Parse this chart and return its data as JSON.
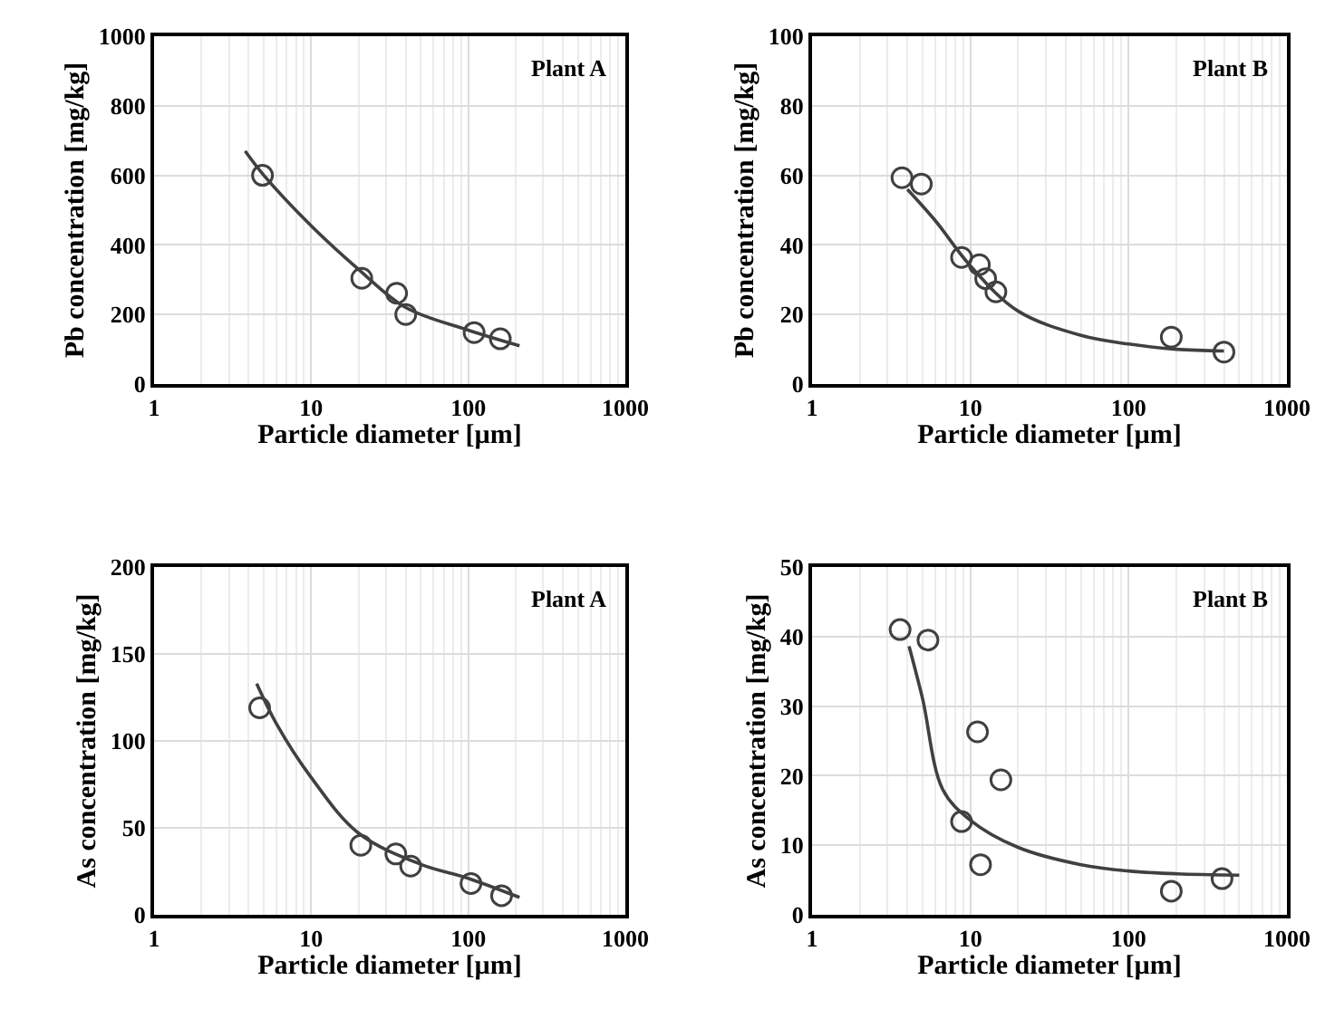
{
  "chart_data": [
    {
      "type": "scatter",
      "xlabel": "Particle diameter [µm]",
      "ylabel": "Pb concentration [mg/kg]",
      "annotations": [
        "Plant A"
      ],
      "log": "x",
      "grid": true,
      "xlim": [
        1,
        1000
      ],
      "xticks": [
        1,
        10,
        100,
        1000
      ],
      "ylim": [
        0,
        1000
      ],
      "yticks": [
        0,
        200,
        400,
        600,
        800,
        1000
      ],
      "series": [
        {
          "type": "scatter",
          "color": "#404040",
          "marker": "circle",
          "x": [
            4.9,
            21,
            35,
            40,
            109,
            160
          ],
          "values": [
            600,
            304,
            261,
            200,
            148,
            130
          ]
        },
        {
          "type": "line",
          "color": "#404040",
          "marker": "none",
          "x": [
            3.8,
            5,
            10,
            20,
            40,
            100,
            212
          ],
          "values": [
            670,
            600,
            455,
            330,
            220,
            155,
            110
          ]
        }
      ]
    },
    {
      "type": "scatter",
      "xlabel": "Particle diameter [µm]",
      "ylabel": "Pb concentration [mg/kg]",
      "annotations": [
        "Plant B"
      ],
      "log": "x",
      "grid": true,
      "xlim": [
        1,
        1000
      ],
      "xticks": [
        1,
        10,
        100,
        1000
      ],
      "ylim": [
        0,
        100
      ],
      "yticks": [
        0,
        20,
        40,
        60,
        80,
        100
      ],
      "series": [
        {
          "type": "scatter",
          "color": "#404040",
          "marker": "circle",
          "x": [
            3.7,
            4.9,
            8.8,
            11.4,
            12.5,
            14.5,
            186,
            400
          ],
          "values": [
            59.3,
            57.5,
            36.4,
            34.3,
            30.3,
            26.5,
            13.5,
            9.2
          ]
        },
        {
          "type": "line",
          "color": "#404040",
          "marker": "none",
          "x": [
            4,
            6,
            10,
            20,
            50,
            100,
            200,
            400
          ],
          "values": [
            56,
            47,
            34,
            21,
            14,
            11.5,
            10,
            9.5
          ]
        }
      ]
    },
    {
      "type": "scatter",
      "xlabel": "Particle diameter [µm]",
      "ylabel": "As concentration [mg/kg]",
      "annotations": [
        "Plant A"
      ],
      "log": "x",
      "grid": true,
      "xlim": [
        1,
        1000
      ],
      "xticks": [
        1,
        10,
        100,
        1000
      ],
      "ylim": [
        0,
        200
      ],
      "yticks": [
        0,
        50,
        100,
        150,
        200
      ],
      "series": [
        {
          "type": "scatter",
          "color": "#404040",
          "marker": "circle",
          "x": [
            4.7,
            20.7,
            34.6,
            43,
            104,
            163
          ],
          "values": [
            119,
            40,
            35,
            28,
            18,
            11
          ]
        },
        {
          "type": "line",
          "color": "#404040",
          "marker": "none",
          "x": [
            4.5,
            6,
            10,
            20,
            50,
            100,
            212
          ],
          "values": [
            133,
            110,
            79,
            47,
            29,
            21,
            10
          ]
        }
      ]
    },
    {
      "type": "scatter",
      "xlabel": "Particle diameter [µm]",
      "ylabel": "As concentration [mg/kg]",
      "annotations": [
        "Plant B"
      ],
      "log": "x",
      "grid": true,
      "xlim": [
        1,
        1000
      ],
      "xticks": [
        1,
        10,
        100,
        1000
      ],
      "ylim": [
        0,
        50
      ],
      "yticks": [
        0,
        10,
        20,
        30,
        40,
        50
      ],
      "series": [
        {
          "type": "scatter",
          "color": "#404040",
          "marker": "circle",
          "x": [
            3.6,
            5.4,
            8.8,
            11.1,
            11.6,
            15.6,
            186,
            389
          ],
          "values": [
            41,
            39.5,
            13.4,
            26.3,
            7.2,
            19.4,
            3.4,
            5.2
          ]
        },
        {
          "type": "line",
          "color": "#404040",
          "marker": "none",
          "x": [
            4.1,
            5,
            6.7,
            10,
            20,
            50,
            100,
            200,
            500
          ],
          "values": [
            38.6,
            31,
            18,
            13.6,
            9.7,
            7.2,
            6.3,
            5.9,
            5.7
          ]
        }
      ]
    }
  ]
}
